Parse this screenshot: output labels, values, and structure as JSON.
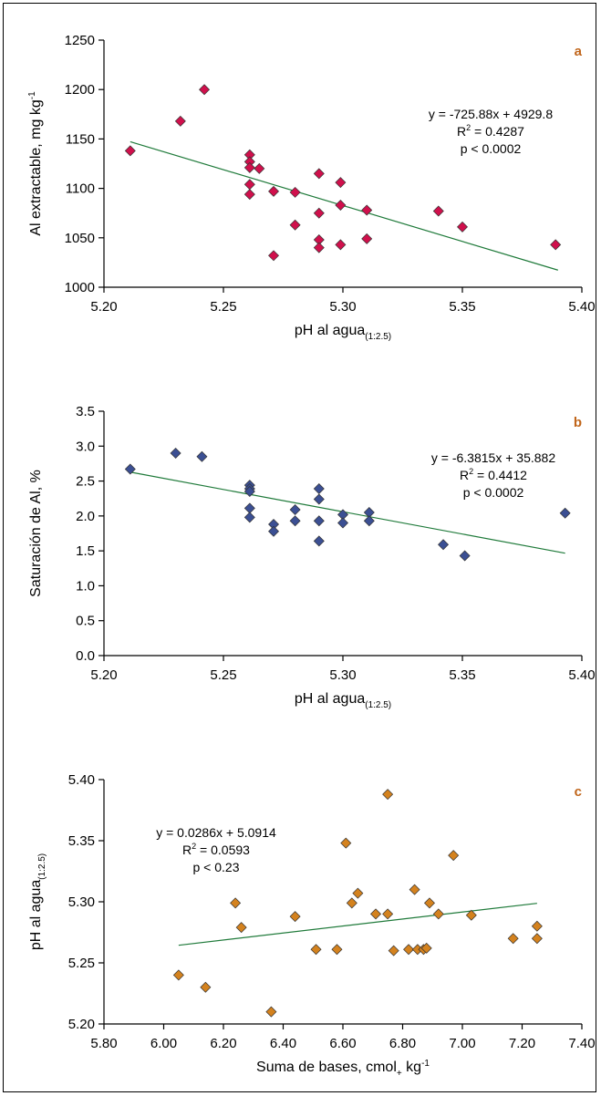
{
  "chart_data": [
    {
      "type": "scatter",
      "panel_label": "a",
      "xlabel": "pH al agua",
      "xlabel_sub": "(1:2.5)",
      "ylabel": "Al extractable, mg kg",
      "ylabel_sup": "-1",
      "xlim": [
        5.2,
        5.4
      ],
      "ylim": [
        1000,
        1250
      ],
      "xticks": [
        "5.20",
        "5.25",
        "5.30",
        "5.35",
        "5.40"
      ],
      "yticks": [
        "1000",
        "1050",
        "1100",
        "1150",
        "1200",
        "1250"
      ],
      "marker_color": "#d0104c",
      "trend_color": "#1f7a3a",
      "trendline": {
        "slope": -725.88,
        "intercept": 4929.8,
        "x_range": [
          5.211,
          5.39
        ]
      },
      "equation": {
        "eq": "y = -725.88x + 4929.8",
        "r2_label": "R",
        "r2_value": " = 0.4287",
        "p": "p < 0.0002"
      },
      "points": [
        {
          "x": 5.211,
          "y": 1138
        },
        {
          "x": 5.232,
          "y": 1168
        },
        {
          "x": 5.242,
          "y": 1200
        },
        {
          "x": 5.261,
          "y": 1134
        },
        {
          "x": 5.261,
          "y": 1127
        },
        {
          "x": 5.261,
          "y": 1121
        },
        {
          "x": 5.265,
          "y": 1120
        },
        {
          "x": 5.261,
          "y": 1104
        },
        {
          "x": 5.261,
          "y": 1094
        },
        {
          "x": 5.271,
          "y": 1097
        },
        {
          "x": 5.28,
          "y": 1096
        },
        {
          "x": 5.28,
          "y": 1063
        },
        {
          "x": 5.271,
          "y": 1032
        },
        {
          "x": 5.29,
          "y": 1115
        },
        {
          "x": 5.29,
          "y": 1075
        },
        {
          "x": 5.29,
          "y": 1048
        },
        {
          "x": 5.29,
          "y": 1040
        },
        {
          "x": 5.299,
          "y": 1106
        },
        {
          "x": 5.299,
          "y": 1083
        },
        {
          "x": 5.299,
          "y": 1043
        },
        {
          "x": 5.31,
          "y": 1078
        },
        {
          "x": 5.31,
          "y": 1049
        },
        {
          "x": 5.34,
          "y": 1077
        },
        {
          "x": 5.35,
          "y": 1061
        },
        {
          "x": 5.389,
          "y": 1043
        }
      ]
    },
    {
      "type": "scatter",
      "panel_label": "b",
      "xlabel": "pH al agua",
      "xlabel_sub": "(1:2.5)",
      "ylabel": "Saturación de Al, %",
      "ylabel_sup": "",
      "xlim": [
        5.2,
        5.4
      ],
      "ylim": [
        0.0,
        3.5
      ],
      "xticks": [
        "5.20",
        "5.25",
        "5.30",
        "5.35",
        "5.40"
      ],
      "yticks": [
        "0.0",
        "0.5",
        "1.0",
        "1.5",
        "2.0",
        "2.5",
        "3.0",
        "3.5"
      ],
      "marker_color": "#3b4f93",
      "trend_color": "#1f7a3a",
      "trendline": {
        "slope": -6.3815,
        "intercept": 35.882,
        "x_range": [
          5.211,
          5.393
        ]
      },
      "equation": {
        "eq": "y = -6.3815x + 35.882",
        "r2_label": "R",
        "r2_value": " = 0.4412",
        "p": "p < 0.0002"
      },
      "points": [
        {
          "x": 5.211,
          "y": 2.67
        },
        {
          "x": 5.23,
          "y": 2.9
        },
        {
          "x": 5.241,
          "y": 2.85
        },
        {
          "x": 5.261,
          "y": 2.44
        },
        {
          "x": 5.261,
          "y": 2.39
        },
        {
          "x": 5.261,
          "y": 2.35
        },
        {
          "x": 5.261,
          "y": 2.11
        },
        {
          "x": 5.261,
          "y": 1.98
        },
        {
          "x": 5.271,
          "y": 1.88
        },
        {
          "x": 5.271,
          "y": 1.78
        },
        {
          "x": 5.28,
          "y": 2.09
        },
        {
          "x": 5.28,
          "y": 1.93
        },
        {
          "x": 5.29,
          "y": 2.39
        },
        {
          "x": 5.29,
          "y": 2.24
        },
        {
          "x": 5.29,
          "y": 1.93
        },
        {
          "x": 5.29,
          "y": 1.64
        },
        {
          "x": 5.3,
          "y": 2.02
        },
        {
          "x": 5.3,
          "y": 1.9
        },
        {
          "x": 5.311,
          "y": 2.05
        },
        {
          "x": 5.311,
          "y": 1.93
        },
        {
          "x": 5.342,
          "y": 1.59
        },
        {
          "x": 5.351,
          "y": 1.43
        },
        {
          "x": 5.393,
          "y": 2.04
        }
      ]
    },
    {
      "type": "scatter",
      "panel_label": "c",
      "xlabel": "Suma de bases, cmol",
      "xlabel_sub": "+",
      "xlabel_tail": " kg",
      "xlabel_sup": "-1",
      "ylabel": "pH al agua",
      "ylabel_sub": "(1:2.5)",
      "xlim": [
        5.8,
        7.4
      ],
      "ylim": [
        5.2,
        5.4
      ],
      "xticks": [
        "5.80",
        "6.00",
        "6.20",
        "6.40",
        "6.60",
        "6.80",
        "7.00",
        "7.20",
        "7.40"
      ],
      "yticks": [
        "5.20",
        "5.25",
        "5.30",
        "5.35",
        "5.40"
      ],
      "marker_color": "#d4821e",
      "trend_color": "#1f7a3a",
      "trendline": {
        "slope": 0.0286,
        "intercept": 5.0914,
        "x_range": [
          6.05,
          7.25
        ]
      },
      "equation": {
        "eq": "y = 0.0286x + 5.0914",
        "r2_label": "R",
        "r2_value": " = 0.0593",
        "p": "p < 0.23"
      },
      "points": [
        {
          "x": 6.05,
          "y": 5.24
        },
        {
          "x": 6.14,
          "y": 5.23
        },
        {
          "x": 6.24,
          "y": 5.299
        },
        {
          "x": 6.26,
          "y": 5.279
        },
        {
          "x": 6.36,
          "y": 5.21
        },
        {
          "x": 6.44,
          "y": 5.288
        },
        {
          "x": 6.51,
          "y": 5.261
        },
        {
          "x": 6.58,
          "y": 5.261
        },
        {
          "x": 6.61,
          "y": 5.348
        },
        {
          "x": 6.63,
          "y": 5.299
        },
        {
          "x": 6.65,
          "y": 5.307
        },
        {
          "x": 6.71,
          "y": 5.29
        },
        {
          "x": 6.75,
          "y": 5.388
        },
        {
          "x": 6.75,
          "y": 5.29
        },
        {
          "x": 6.77,
          "y": 5.26
        },
        {
          "x": 6.82,
          "y": 5.261
        },
        {
          "x": 6.84,
          "y": 5.31
        },
        {
          "x": 6.85,
          "y": 5.261
        },
        {
          "x": 6.87,
          "y": 5.261
        },
        {
          "x": 6.88,
          "y": 5.262
        },
        {
          "x": 6.89,
          "y": 5.299
        },
        {
          "x": 6.92,
          "y": 5.29
        },
        {
          "x": 6.97,
          "y": 5.338
        },
        {
          "x": 7.03,
          "y": 5.289
        },
        {
          "x": 7.17,
          "y": 5.27
        },
        {
          "x": 7.25,
          "y": 5.28
        },
        {
          "x": 7.25,
          "y": 5.27
        }
      ]
    }
  ]
}
